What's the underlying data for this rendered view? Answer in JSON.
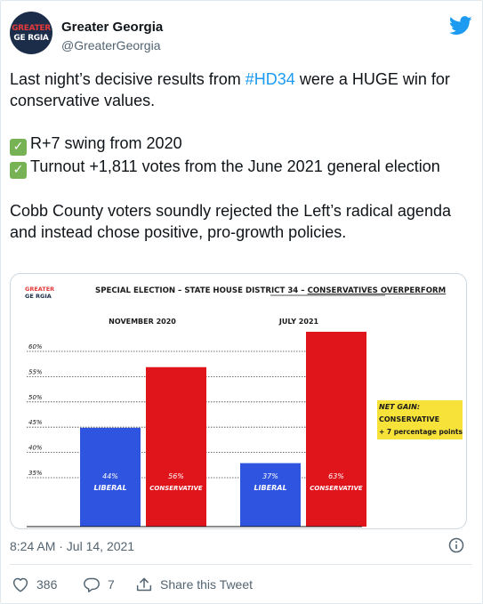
{
  "account": {
    "display_name": "Greater Georgia",
    "handle": "@GreaterGeorgia",
    "avatar_line1": "GREATER",
    "avatar_line2": "GE  RGIA"
  },
  "tweet": {
    "line1_prefix": "Last night’s decisive results from ",
    "hashtag": "#HD34",
    "line1_suffix": " were a HUGE win for conservative values.",
    "check1": "R+7 swing from 2020",
    "check2": "Turnout +1,811 votes from the June 2021 general election",
    "closing": "Cobb County voters soundly rejected the Left’s radical agenda and instead chose positive, pro-growth policies."
  },
  "image": {
    "logo_line1": "GREATER",
    "logo_line2": "GE RGIA",
    "title_prefix": "SPECIAL ELECTION – STATE HOUSE DISTRICT 34 – ",
    "title_emphasis": "CONSERVATIVES OVERPERFORM",
    "net_gain_line1": "NET GAIN:",
    "net_gain_line2": "CONSERVATIVE",
    "net_gain_line3": "+ 7 percentage points"
  },
  "chart_data": {
    "type": "bar",
    "title": "SPECIAL ELECTION – STATE HOUSE DISTRICT 34 – CONSERVATIVES OVERPERFORM",
    "groups": [
      {
        "label": "NOVEMBER 2020",
        "bars": [
          {
            "category": "LIBERAL",
            "value": 44,
            "label": "44%",
            "color": "#2f55e0"
          },
          {
            "category": "CONSERVATIVE",
            "value": 56,
            "label": "56%",
            "color": "#e0141b"
          }
        ]
      },
      {
        "label": "JULY 2021",
        "bars": [
          {
            "category": "LIBERAL",
            "value": 37,
            "label": "37%",
            "color": "#2f55e0"
          },
          {
            "category": "CONSERVATIVE",
            "value": 63,
            "label": "63%",
            "color": "#e0141b"
          }
        ]
      }
    ],
    "y_ticks": [
      "35%",
      "40%",
      "45%",
      "50%",
      "55%",
      "60%"
    ],
    "grid": true
  },
  "meta": {
    "timestamp": "8:24 AM · Jul 14, 2021"
  },
  "actions": {
    "likes": "386",
    "replies": "7",
    "share_label": "Share this Tweet"
  },
  "colors": {
    "accent": "#1d9bf0",
    "liberal": "#2f55e0",
    "conservative": "#e0141b",
    "highlight": "#f7e23a"
  }
}
